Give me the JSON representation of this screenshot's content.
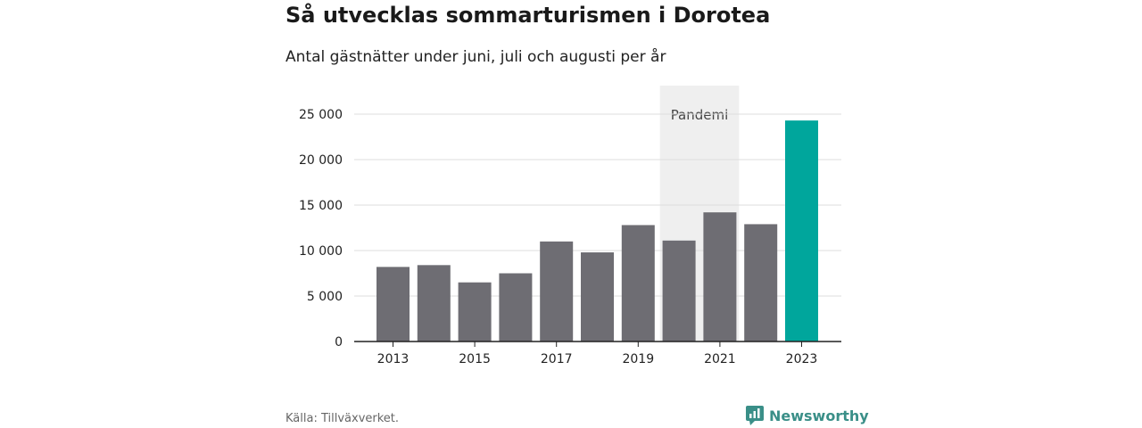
{
  "header": {
    "title": "Så utvecklas sommarturismen i Dorotea",
    "subtitle": "Antal gästnätter under juni, juli och augusti per år"
  },
  "footer": {
    "source": "Källa: Tillväxverket.",
    "brand": "Newsworthy",
    "brand_icon": "bar-chart-speech-icon"
  },
  "colors": {
    "bar": "#6e6d73",
    "highlight": "#00a69c",
    "shade": "#efefef",
    "grid": "#dddddd",
    "axis": "#222222",
    "brand": "#3a8f88"
  },
  "chart_data": {
    "type": "bar",
    "title": "Så utvecklas sommarturismen i Dorotea",
    "subtitle": "Antal gästnätter under juni, juli och augusti per år",
    "categories": [
      "2013",
      "2014",
      "2015",
      "2016",
      "2017",
      "2018",
      "2019",
      "2020",
      "2021",
      "2022",
      "2023"
    ],
    "values": [
      8200,
      8400,
      6500,
      7500,
      11000,
      9800,
      12800,
      11100,
      14200,
      12900,
      24300
    ],
    "highlight_category": "2023",
    "x_tick_labels": [
      "2013",
      "2015",
      "2017",
      "2019",
      "2021",
      "2023"
    ],
    "y_ticks": [
      0,
      5000,
      10000,
      15000,
      20000,
      25000
    ],
    "y_tick_labels": [
      "0",
      "5 000",
      "10 000",
      "15 000",
      "20 000",
      "25 000"
    ],
    "ylim": [
      0,
      28000
    ],
    "grid": true,
    "shaded_region": {
      "from": "2020",
      "to": "2021",
      "label": "Pandemi"
    }
  }
}
